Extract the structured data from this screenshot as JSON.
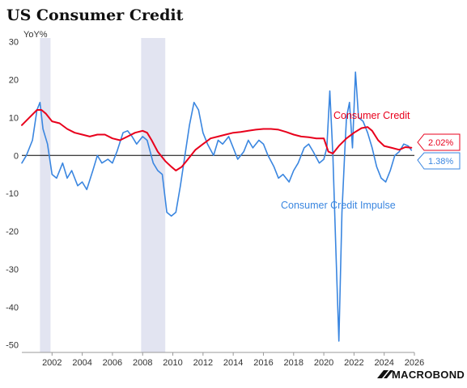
{
  "chart_data": {
    "type": "line",
    "title": "US Consumer Credit",
    "ylabel": "YoY%",
    "xlabel": "",
    "ylim": [
      -52,
      31
    ],
    "xlim": [
      2000.0,
      2026.0
    ],
    "y_ticks": [
      30,
      20,
      10,
      0,
      -10,
      -20,
      -30,
      -40,
      -50
    ],
    "x_ticks": [
      2002,
      2004,
      2006,
      2008,
      2010,
      2012,
      2014,
      2016,
      2018,
      2020,
      2022,
      2024,
      2026
    ],
    "recessions": [
      [
        2001.2,
        2001.9
      ],
      [
        2007.9,
        2009.5
      ]
    ],
    "zero_line": true,
    "grid": false,
    "series": [
      {
        "name": "Consumer Credit",
        "color": "#e8001c",
        "last_value": "2.02%",
        "x": [
          2000.0,
          2000.5,
          2001.0,
          2001.3,
          2001.6,
          2002.0,
          2002.5,
          2003.0,
          2003.5,
          2004.0,
          2004.5,
          2005.0,
          2005.5,
          2006.0,
          2006.5,
          2007.0,
          2007.5,
          2008.0,
          2008.3,
          2008.6,
          2009.0,
          2009.5,
          2009.9,
          2010.2,
          2010.6,
          2011.0,
          2011.5,
          2012.0,
          2012.5,
          2013.0,
          2013.5,
          2014.0,
          2014.5,
          2015.0,
          2015.5,
          2016.0,
          2016.5,
          2017.0,
          2017.5,
          2018.0,
          2018.5,
          2019.0,
          2019.5,
          2020.0,
          2020.3,
          2020.6,
          2021.0,
          2021.5,
          2022.0,
          2022.5,
          2022.9,
          2023.2,
          2023.6,
          2024.0,
          2024.5,
          2025.0,
          2025.4,
          2025.8
        ],
        "values": [
          8,
          10,
          12,
          12,
          11,
          9,
          8.5,
          7,
          6,
          5.5,
          5,
          5.5,
          5.5,
          4.5,
          4,
          5,
          6,
          6.5,
          6,
          4,
          1,
          -1.5,
          -3,
          -4,
          -3,
          -1,
          1.5,
          3,
          4.5,
          5,
          5.5,
          6,
          6.2,
          6.5,
          6.8,
          7,
          7,
          6.8,
          6.2,
          5.5,
          5,
          4.8,
          4.5,
          4.5,
          1,
          0.5,
          2.5,
          4.5,
          6,
          7.2,
          7.5,
          6.5,
          4,
          2.5,
          2,
          1.5,
          2.2,
          2.02
        ]
      },
      {
        "name": "Consumer Credit Impulse",
        "color": "#3a86e0",
        "last_value": "1.38%",
        "x": [
          2000.0,
          2000.3,
          2000.7,
          2001.0,
          2001.2,
          2001.4,
          2001.7,
          2002.0,
          2002.3,
          2002.7,
          2003.0,
          2003.3,
          2003.7,
          2004.0,
          2004.3,
          2004.7,
          2005.0,
          2005.3,
          2005.7,
          2006.0,
          2006.3,
          2006.7,
          2007.0,
          2007.3,
          2007.6,
          2008.0,
          2008.3,
          2008.7,
          2009.0,
          2009.3,
          2009.6,
          2009.9,
          2010.2,
          2010.5,
          2010.8,
          2011.1,
          2011.4,
          2011.7,
          2012.0,
          2012.3,
          2012.7,
          2013.0,
          2013.3,
          2013.7,
          2014.0,
          2014.3,
          2014.7,
          2015.0,
          2015.3,
          2015.7,
          2016.0,
          2016.3,
          2016.7,
          2017.0,
          2017.3,
          2017.7,
          2018.0,
          2018.3,
          2018.7,
          2019.0,
          2019.3,
          2019.7,
          2020.0,
          2020.2,
          2020.4,
          2020.6,
          2020.8,
          2021.0,
          2021.2,
          2021.4,
          2021.5,
          2021.7,
          2021.9,
          2022.1,
          2022.3,
          2022.6,
          2022.9,
          2023.2,
          2023.5,
          2023.8,
          2024.1,
          2024.4,
          2024.7,
          2025.0,
          2025.3,
          2025.6,
          2025.8
        ],
        "values": [
          -2,
          0,
          4,
          12,
          14,
          7,
          3,
          -5,
          -6,
          -2,
          -6,
          -4,
          -8,
          -7,
          -9,
          -4,
          0,
          -2,
          -1,
          -2,
          1,
          6,
          6.5,
          5,
          3,
          5,
          4,
          -2,
          -4,
          -5,
          -15,
          -16,
          -15,
          -8,
          0,
          8,
          14,
          12,
          6,
          3,
          0,
          4,
          3,
          5,
          2,
          -1,
          1,
          4,
          2,
          4,
          3,
          0,
          -3,
          -6,
          -5,
          -7,
          -4,
          -2,
          2,
          3,
          1,
          -2,
          -1,
          2,
          17,
          0,
          -25,
          -49,
          -15,
          2,
          10,
          14,
          2,
          22,
          10,
          9,
          6,
          2,
          -3,
          -6,
          -7,
          -4,
          0,
          1,
          3,
          2.5,
          1.38
        ]
      }
    ]
  },
  "legend": {
    "consumer_credit": "Consumer Credit",
    "consumer_credit_impulse": "Consumer Credit Impulse",
    "consumer_credit_last": "2.02%",
    "consumer_credit_impulse_last": "1.38%"
  },
  "branding": {
    "logo_text": "MACROBOND"
  },
  "colors": {
    "recession_band": "#e2e4f1",
    "axis": "#999999",
    "zero_line": "#000000"
  }
}
